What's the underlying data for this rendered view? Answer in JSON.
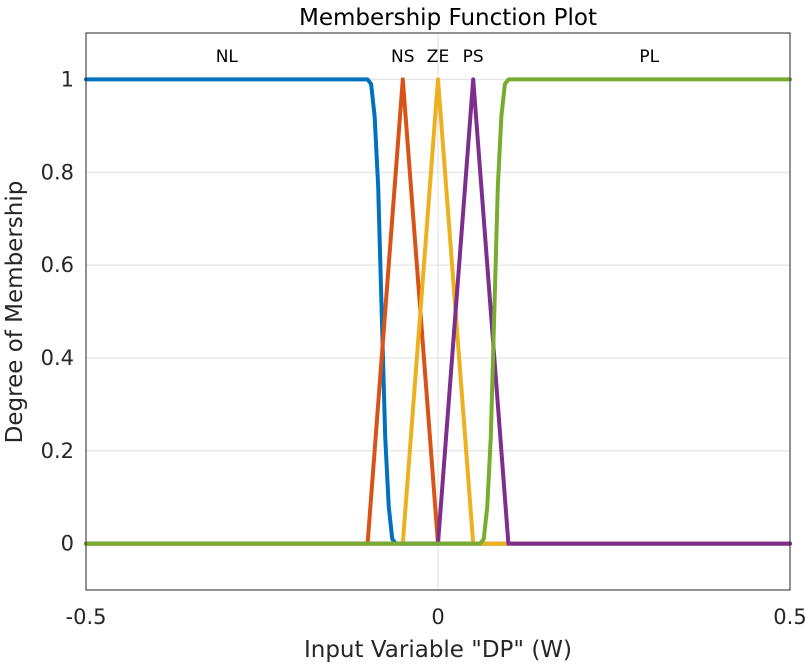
{
  "chart_data": {
    "type": "line",
    "title": "Membership Function Plot",
    "xlabel": "Input Variable \"DP\" (W)",
    "ylabel": "Degree of Membership",
    "xlim": [
      -0.5,
      0.5
    ],
    "ylim": [
      -0.1,
      1.1
    ],
    "x_ticks": [
      -0.5,
      0,
      0.5
    ],
    "x_tick_labels": [
      "-0.5",
      "0",
      "0.5"
    ],
    "y_ticks": [
      0,
      0.2,
      0.4,
      0.6,
      0.8,
      1
    ],
    "y_tick_labels": [
      "0",
      "0.2",
      "0.4",
      "0.6",
      "0.8",
      "1"
    ],
    "grid": true,
    "series": [
      {
        "name": "NL",
        "color": "#0072BD",
        "x": [
          -0.5,
          -0.1,
          -0.095,
          -0.09,
          -0.085,
          -0.08,
          -0.075,
          -0.07,
          -0.065,
          -0.06,
          -0.055,
          -0.05,
          0.5
        ],
        "y": [
          1,
          1,
          0.99,
          0.92,
          0.77,
          0.5,
          0.23,
          0.08,
          0.01,
          0,
          0,
          0,
          0
        ]
      },
      {
        "name": "NS",
        "color": "#D95319",
        "x": [
          -0.5,
          -0.1,
          -0.05,
          0,
          0.5
        ],
        "y": [
          0,
          0,
          1,
          0,
          0
        ]
      },
      {
        "name": "ZE",
        "color": "#EDB120",
        "x": [
          -0.5,
          -0.05,
          0,
          0.05,
          0.5
        ],
        "y": [
          0,
          0,
          1,
          0,
          0
        ]
      },
      {
        "name": "PS",
        "color": "#7E2F8E",
        "x": [
          -0.5,
          0,
          0.05,
          0.1,
          0.5
        ],
        "y": [
          0,
          0,
          1,
          0,
          0
        ]
      },
      {
        "name": "PL",
        "color": "#77AC30",
        "x": [
          -0.5,
          0.05,
          0.055,
          0.06,
          0.065,
          0.07,
          0.075,
          0.08,
          0.085,
          0.09,
          0.095,
          0.1,
          0.5
        ],
        "y": [
          0,
          0,
          0,
          0,
          0.01,
          0.08,
          0.23,
          0.5,
          0.77,
          0.92,
          0.99,
          1,
          1
        ]
      }
    ],
    "annotations": [
      {
        "text": "NL",
        "x": -0.3,
        "y": 1.05
      },
      {
        "text": "NS",
        "x": -0.05,
        "y": 1.05
      },
      {
        "text": "ZE",
        "x": 0,
        "y": 1.05
      },
      {
        "text": "PS",
        "x": 0.05,
        "y": 1.05
      },
      {
        "text": "PL",
        "x": 0.3,
        "y": 1.05
      }
    ]
  }
}
